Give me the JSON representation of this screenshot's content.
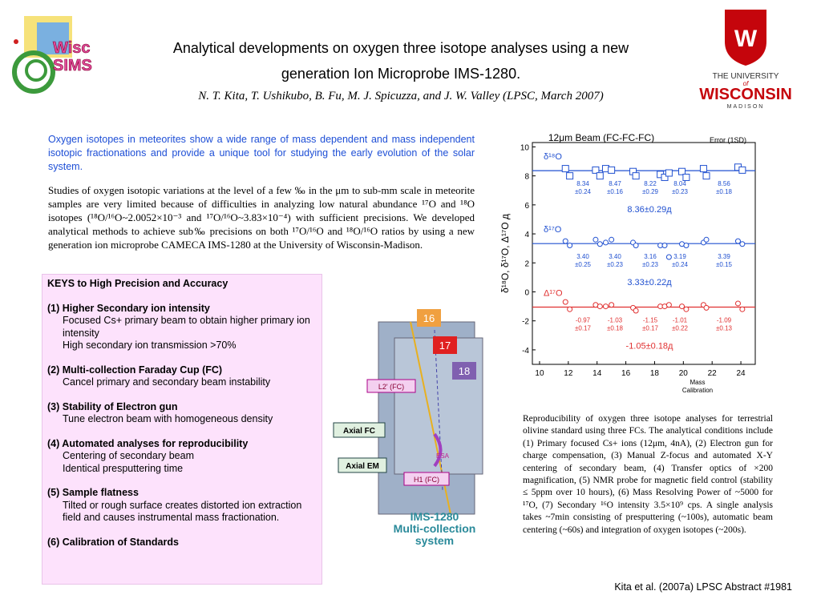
{
  "header": {
    "title_line1": "Analytical developments on oxygen three isotope analyses using a new",
    "title_line2": "generation Ion Microprobe IMS-1280.",
    "authors": "N. T. Kita, T. Ushikubo, B. Fu, M. J. Spicuzza, and J. W. Valley (LPSC, March 2007)",
    "logo_left": [
      "Wisc",
      "SIMS"
    ],
    "logo_right": [
      "THE UNIVERSITY",
      "of",
      "WISCONSIN",
      "MADISON"
    ]
  },
  "intro": "Oxygen isotopes in meteorites show a wide range of mass dependent and mass independent isotopic fractionations and provide a unique tool for studying the early evolution of the solar system.",
  "body": "Studies of oxygen isotopic variations at the level of a few ‰ in the μm to sub-mm scale in meteorite samples are very limited because of difficulties in analyzing low natural abundance ¹⁷O and ¹⁸O isotopes (¹⁸O/¹⁶O~2.0052×10⁻³ and ¹⁷O/¹⁶O~3.83×10⁻⁴) with sufficient precisions. We developed analytical methods to achieve sub‰ precisions on both ¹⁷O/¹⁶O and ¹⁸O/¹⁶O ratios by using a new generation ion microprobe CAMECA IMS-1280 at the University of Wisconsin-Madison.",
  "keys": {
    "title": "KEYS to High Precision and Accuracy",
    "sections": [
      {
        "heading": "(1) Higher Secondary ion intensity",
        "items": [
          "Focused Cs+ primary beam to obtain higher primary ion intensity",
          "High secondary ion transmission >70%"
        ]
      },
      {
        "heading": "(2) Multi-collection Faraday Cup (FC)",
        "items": [
          "Cancel primary and secondary beam instability"
        ]
      },
      {
        "heading": "(3) Stability of Electron gun",
        "items": [
          "Tune electron beam with homogeneous density"
        ]
      },
      {
        "heading": "(4) Automated analyses for reproducibility",
        "items": [
          "Centering of secondary beam",
          "Identical presputtering time"
        ]
      },
      {
        "heading": "(5) Sample flatness",
        "items": [
          "Tilted or rough surface creates distorted ion extraction field and causes instrumental mass fractionation."
        ]
      },
      {
        "heading": "(6) Calibration of Standards",
        "items": []
      }
    ]
  },
  "diagram": {
    "labels": [
      "16",
      "17",
      "18",
      "L2' (FC)",
      "Axial FC",
      "Axial EM",
      "ESA",
      "H1 (FC)"
    ],
    "title": [
      "IMS-1280",
      "Multi-collection",
      "system"
    ]
  },
  "chart": {
    "type": "scatter",
    "title": "12μm Beam (FC-FC-FC)",
    "note": "Error (1SD)",
    "ylabel": "δ¹⁸O, δ¹⁷O, Δ¹⁷O д",
    "xlabel": [
      "Mass",
      "Calibration"
    ],
    "xlim": [
      9.5,
      25
    ],
    "ylim": [
      -5,
      10.3
    ],
    "xticks": [
      10,
      12,
      14,
      16,
      18,
      20,
      22,
      24
    ],
    "yticks": [
      10,
      8,
      6,
      4,
      2,
      0,
      -2,
      -4
    ],
    "x": [
      11.8,
      12.1,
      13.9,
      14.2,
      14.6,
      15.0,
      16.5,
      16.7,
      18.4,
      18.7,
      19.0,
      19.9,
      20.2,
      21.4,
      21.6,
      23.8,
      24.1
    ],
    "series": [
      {
        "name": "δ¹⁸O",
        "color": "#2050d0",
        "marker": "square",
        "values": [
          8.5,
          8.0,
          8.4,
          8.0,
          8.5,
          8.4,
          8.3,
          8.0,
          8.1,
          7.9,
          8.2,
          8.3,
          7.9,
          8.5,
          8.0,
          8.6,
          8.4
        ],
        "mean": 8.36,
        "mean_label": "8.36±0.29д",
        "group_labels": [
          [
            "8.34",
            "±0.24"
          ],
          [
            "8.47",
            "±0.16"
          ],
          [
            "8.22",
            "±0.29"
          ],
          [
            "8.04",
            "±0.23"
          ],
          [
            "8.56",
            "±0.18"
          ]
        ]
      },
      {
        "name": "δ¹⁷O",
        "color": "#2050d0",
        "marker": "circle",
        "values": [
          3.5,
          3.2,
          3.6,
          3.3,
          3.4,
          3.6,
          3.4,
          3.2,
          3.2,
          3.2,
          2.4,
          3.3,
          3.2,
          3.4,
          3.6,
          3.5,
          3.3
        ],
        "mean": 3.33,
        "mean_label": "3.33±0.22д",
        "group_labels": [
          [
            "3.40",
            "±0.25"
          ],
          [
            "3.40",
            "±0.23"
          ],
          [
            "3.16",
            "±0.23"
          ],
          [
            "3.19",
            "±0.24"
          ],
          [
            "3.39",
            "±0.15"
          ]
        ]
      },
      {
        "name": "Δ¹⁷O",
        "color": "#e03030",
        "marker": "circle",
        "values": [
          -0.7,
          -1.2,
          -0.9,
          -1.0,
          -1.0,
          -0.9,
          -1.1,
          -1.3,
          -1.0,
          -1.0,
          -0.9,
          -1.0,
          -1.2,
          -0.9,
          -1.1,
          -0.8,
          -1.2
        ],
        "mean": -1.05,
        "mean_label": "-1.05±0.18д",
        "group_labels": [
          [
            "-0.97",
            "±0.17"
          ],
          [
            "-1.03",
            "±0.18"
          ],
          [
            "-1.15",
            "±0.17"
          ],
          [
            "-1.01",
            "±0.22"
          ],
          [
            "-1.09",
            "±0.13"
          ]
        ]
      }
    ]
  },
  "caption": "Reproducibility of oxygen three isotope analyses for terrestrial olivine standard using three FCs. The analytical conditions include (1) Primary focused Cs+ ions (12μm, 4nA), (2) Electron gun for charge compensation, (3) Manual Z-focus and automated X-Y centering of secondary beam, (4) Transfer optics of ×200 magnification, (5) NMR probe for magnetic field control (stability ≤ 5ppm over 10 hours), (6) Mass Resolving Power of ~5000 for ¹⁷O, (7) Secondary ¹⁶O intensity 3.5×10⁹ cps. A single analysis takes ~7min consisting of presputtering (~100s), automatic beam centering (~60s) and integration of oxygen isotopes (~200s).",
  "footer": "Kita et al. (2007a) LPSC Abstract #1981"
}
